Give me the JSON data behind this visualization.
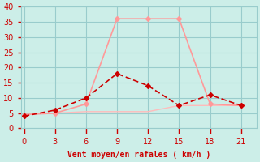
{
  "xlabel": "Vent moyen/en rafales ( km/h )",
  "x_all": [
    0,
    3,
    6,
    9,
    12,
    15,
    18,
    21
  ],
  "wind_avg": [
    4,
    6,
    10,
    18,
    14,
    7.5,
    11,
    7.5
  ],
  "wind_gust": [
    4.5,
    5,
    8,
    36,
    36,
    36,
    8,
    7.5
  ],
  "wind_flat": [
    5,
    5,
    5.5,
    5.5,
    5.5,
    7.5,
    7.5,
    7.5
  ],
  "color_avg": "#cc0000",
  "color_gust": "#ff9999",
  "color_flat": "#ffbbbb",
  "bg_color": "#cceee8",
  "grid_color": "#99cccc",
  "text_color": "#cc0000",
  "ylim": [
    0,
    40
  ],
  "yticks": [
    0,
    5,
    10,
    15,
    20,
    25,
    30,
    35,
    40
  ],
  "xticks": [
    0,
    3,
    6,
    9,
    12,
    15,
    18,
    21
  ]
}
